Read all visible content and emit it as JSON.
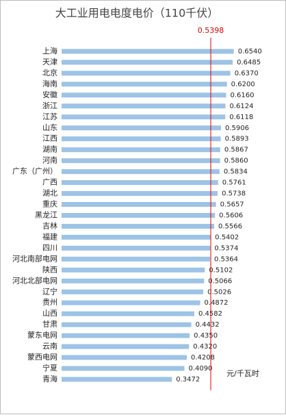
{
  "chart_data": {
    "type": "bar",
    "orientation": "horizontal",
    "title": "大工业用电电度电价（110千伏）",
    "unit": "元/千瓦时",
    "categories": [
      "上海",
      "天津",
      "北京",
      "海南",
      "安徽",
      "浙江",
      "江苏",
      "山东",
      "江西",
      "湖南",
      "河南",
      "广东（广州）",
      "广西",
      "湖北",
      "重庆",
      "黑龙江",
      "吉林",
      "福建",
      "四川",
      "河北南部电网",
      "陕西",
      "河北北部电网",
      "辽宁",
      "贵州",
      "山西",
      "甘肃",
      "蒙东电网",
      "云南",
      "蒙西电网",
      "宁夏",
      "青海"
    ],
    "values": [
      0.654,
      0.6485,
      0.637,
      0.62,
      0.616,
      0.6124,
      0.6118,
      0.5906,
      0.5893,
      0.5867,
      0.586,
      0.5834,
      0.5761,
      0.5738,
      0.5657,
      0.5606,
      0.5566,
      0.5402,
      0.5374,
      0.5364,
      0.5102,
      0.5066,
      0.5026,
      0.4872,
      0.4582,
      0.4432,
      0.435,
      0.432,
      0.4208,
      0.409,
      0.3472
    ],
    "value_labels": [
      "0.6540",
      "0.6485",
      "0.6370",
      "0.6200",
      "0.6160",
      "0.6124",
      "0.6118",
      "0.5906",
      "0.5893",
      "0.5867",
      "0.5860",
      "0.5834",
      "0.5761",
      "0.5738",
      "0.5657",
      "0.5606",
      "0.5566",
      "0.5402",
      "0.5374",
      "0.5364",
      "0.5102",
      "0.5066",
      "0.5026",
      "0.4872",
      "0.4582",
      "0.4432",
      "0.4350",
      "0.4320",
      "0.4208",
      "0.4090",
      "0.3472"
    ],
    "color": "#9dc3e6",
    "xlim": [
      -0.2,
      0.75
    ],
    "reference_line": {
      "value": 0.5398,
      "label": "0.5398",
      "color": "#e00000"
    }
  }
}
